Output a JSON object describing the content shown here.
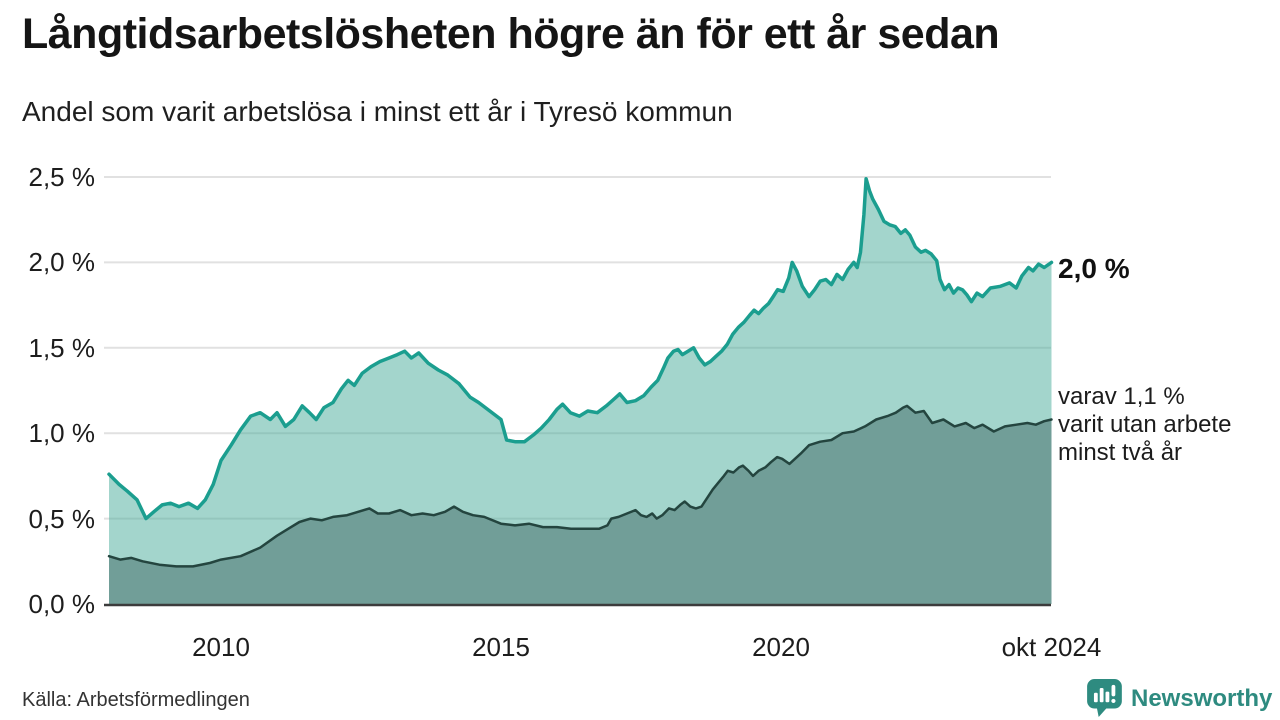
{
  "header": {
    "title": "Långtidsarbetslösheten högre än för ett år sedan",
    "subtitle": "Andel som varit arbetslösa i minst ett år i Tyresö kommun"
  },
  "footer": {
    "source": "Källa: Arbetsförmedlingen",
    "brand": "Newsworthy"
  },
  "colors": {
    "accent_teal": "#1b9e8f",
    "light_fill": "#47ab99",
    "dark_fill": "#719e98",
    "dark_line": "#24453f",
    "gridline": "#e1e1e1",
    "baseline": "#3c3c3c",
    "brand_teal": "#2e8b80",
    "text_dark": "#151515"
  },
  "chart_data": {
    "type": "area",
    "title": "Långtidsarbetslösheten högre än för ett år sedan",
    "subtitle": "Andel som varit arbetslösa i minst ett år i Tyresö kommun",
    "xlabel": "",
    "ylabel": "",
    "x_range": [
      2007.95,
      2024.83
    ],
    "ylim": [
      0,
      2.5
    ],
    "grid": "horizontal",
    "legend_position": "none",
    "y_ticks": [
      {
        "value": 2.5,
        "label": "2,5 %"
      },
      {
        "value": 2.0,
        "label": "2,0 %"
      },
      {
        "value": 1.5,
        "label": "1,5 %"
      },
      {
        "value": 1.0,
        "label": "1,0 %"
      },
      {
        "value": 0.5,
        "label": "0,5 %"
      },
      {
        "value": 0.0,
        "label": "0,0 %"
      }
    ],
    "x_ticks": [
      {
        "year": 2010,
        "label": "2010"
      },
      {
        "year": 2015,
        "label": "2015"
      },
      {
        "year": 2020,
        "label": "2020"
      },
      {
        "year": 2024.83,
        "label": "okt 2024"
      }
    ],
    "annotations": {
      "end_label": "2,0 %",
      "sub_label_lines": [
        "varav 1,1 %",
        "varit utan arbete",
        "minst två år"
      ]
    },
    "series": [
      {
        "id": "unemployed_min_one_year",
        "name": "Arbetslösa minst ett år",
        "line_color": "#1b9e8f",
        "line_width": 3.5,
        "fill_color": "#47ab99",
        "fill_opacity": 0.5,
        "end_value_label": "2,0 %",
        "points": [
          [
            2008.0,
            0.76
          ],
          [
            2008.18,
            0.7
          ],
          [
            2008.33,
            0.66
          ],
          [
            2008.5,
            0.61
          ],
          [
            2008.66,
            0.5
          ],
          [
            2008.8,
            0.54
          ],
          [
            2008.95,
            0.58
          ],
          [
            2009.1,
            0.59
          ],
          [
            2009.25,
            0.57
          ],
          [
            2009.42,
            0.59
          ],
          [
            2009.58,
            0.56
          ],
          [
            2009.72,
            0.61
          ],
          [
            2009.86,
            0.7
          ],
          [
            2010.0,
            0.84
          ],
          [
            2010.18,
            0.93
          ],
          [
            2010.35,
            1.02
          ],
          [
            2010.53,
            1.1
          ],
          [
            2010.7,
            1.12
          ],
          [
            2010.88,
            1.08
          ],
          [
            2011.0,
            1.12
          ],
          [
            2011.15,
            1.04
          ],
          [
            2011.3,
            1.08
          ],
          [
            2011.45,
            1.16
          ],
          [
            2011.58,
            1.12
          ],
          [
            2011.7,
            1.08
          ],
          [
            2011.84,
            1.15
          ],
          [
            2012.0,
            1.18
          ],
          [
            2012.15,
            1.26
          ],
          [
            2012.27,
            1.31
          ],
          [
            2012.38,
            1.28
          ],
          [
            2012.52,
            1.35
          ],
          [
            2012.68,
            1.39
          ],
          [
            2012.84,
            1.42
          ],
          [
            2013.0,
            1.44
          ],
          [
            2013.15,
            1.46
          ],
          [
            2013.28,
            1.48
          ],
          [
            2013.4,
            1.44
          ],
          [
            2013.53,
            1.47
          ],
          [
            2013.7,
            1.41
          ],
          [
            2013.88,
            1.37
          ],
          [
            2014.05,
            1.34
          ],
          [
            2014.25,
            1.29
          ],
          [
            2014.45,
            1.21
          ],
          [
            2014.6,
            1.18
          ],
          [
            2014.8,
            1.13
          ],
          [
            2015.0,
            1.08
          ],
          [
            2015.1,
            0.96
          ],
          [
            2015.25,
            0.95
          ],
          [
            2015.42,
            0.95
          ],
          [
            2015.58,
            0.99
          ],
          [
            2015.72,
            1.03
          ],
          [
            2015.86,
            1.08
          ],
          [
            2016.0,
            1.14
          ],
          [
            2016.1,
            1.17
          ],
          [
            2016.24,
            1.12
          ],
          [
            2016.4,
            1.1
          ],
          [
            2016.55,
            1.13
          ],
          [
            2016.72,
            1.12
          ],
          [
            2016.88,
            1.16
          ],
          [
            2017.02,
            1.2
          ],
          [
            2017.12,
            1.23
          ],
          [
            2017.25,
            1.18
          ],
          [
            2017.4,
            1.19
          ],
          [
            2017.55,
            1.22
          ],
          [
            2017.68,
            1.27
          ],
          [
            2017.8,
            1.31
          ],
          [
            2017.9,
            1.38
          ],
          [
            2017.98,
            1.44
          ],
          [
            2018.08,
            1.48
          ],
          [
            2018.16,
            1.49
          ],
          [
            2018.24,
            1.46
          ],
          [
            2018.34,
            1.48
          ],
          [
            2018.44,
            1.5
          ],
          [
            2018.54,
            1.44
          ],
          [
            2018.64,
            1.4
          ],
          [
            2018.74,
            1.42
          ],
          [
            2018.84,
            1.45
          ],
          [
            2018.94,
            1.48
          ],
          [
            2019.04,
            1.52
          ],
          [
            2019.14,
            1.58
          ],
          [
            2019.24,
            1.62
          ],
          [
            2019.34,
            1.65
          ],
          [
            2019.44,
            1.69
          ],
          [
            2019.52,
            1.72
          ],
          [
            2019.6,
            1.7
          ],
          [
            2019.68,
            1.73
          ],
          [
            2019.78,
            1.76
          ],
          [
            2019.86,
            1.8
          ],
          [
            2019.94,
            1.84
          ],
          [
            2020.04,
            1.83
          ],
          [
            2020.14,
            1.91
          ],
          [
            2020.2,
            2.0
          ],
          [
            2020.28,
            1.95
          ],
          [
            2020.38,
            1.86
          ],
          [
            2020.5,
            1.8
          ],
          [
            2020.6,
            1.84
          ],
          [
            2020.7,
            1.89
          ],
          [
            2020.8,
            1.9
          ],
          [
            2020.9,
            1.87
          ],
          [
            2021.0,
            1.93
          ],
          [
            2021.1,
            1.9
          ],
          [
            2021.2,
            1.96
          ],
          [
            2021.3,
            2.0
          ],
          [
            2021.36,
            1.97
          ],
          [
            2021.42,
            2.06
          ],
          [
            2021.48,
            2.28
          ],
          [
            2021.52,
            2.49
          ],
          [
            2021.58,
            2.42
          ],
          [
            2021.64,
            2.37
          ],
          [
            2021.74,
            2.31
          ],
          [
            2021.84,
            2.24
          ],
          [
            2021.94,
            2.22
          ],
          [
            2022.04,
            2.21
          ],
          [
            2022.14,
            2.17
          ],
          [
            2022.22,
            2.19
          ],
          [
            2022.3,
            2.16
          ],
          [
            2022.4,
            2.09
          ],
          [
            2022.5,
            2.06
          ],
          [
            2022.58,
            2.07
          ],
          [
            2022.68,
            2.05
          ],
          [
            2022.78,
            2.01
          ],
          [
            2022.84,
            1.9
          ],
          [
            2022.92,
            1.84
          ],
          [
            2023.0,
            1.87
          ],
          [
            2023.08,
            1.82
          ],
          [
            2023.16,
            1.85
          ],
          [
            2023.24,
            1.84
          ],
          [
            2023.32,
            1.81
          ],
          [
            2023.4,
            1.77
          ],
          [
            2023.5,
            1.82
          ],
          [
            2023.6,
            1.8
          ],
          [
            2023.74,
            1.85
          ],
          [
            2023.92,
            1.86
          ],
          [
            2024.08,
            1.88
          ],
          [
            2024.2,
            1.85
          ],
          [
            2024.3,
            1.92
          ],
          [
            2024.42,
            1.97
          ],
          [
            2024.5,
            1.95
          ],
          [
            2024.6,
            1.99
          ],
          [
            2024.7,
            1.97
          ],
          [
            2024.83,
            2.0
          ]
        ]
      },
      {
        "id": "unemployed_min_two_years",
        "name": "Varav utan arbete minst två år",
        "line_color": "#24453f",
        "line_width": 2.5,
        "fill_color": "#719e98",
        "fill_opacity": 1,
        "end_value_label": "varav 1,1 %",
        "points": [
          [
            2008.0,
            0.28
          ],
          [
            2008.2,
            0.26
          ],
          [
            2008.4,
            0.27
          ],
          [
            2008.6,
            0.25
          ],
          [
            2008.9,
            0.23
          ],
          [
            2009.2,
            0.22
          ],
          [
            2009.5,
            0.22
          ],
          [
            2009.8,
            0.24
          ],
          [
            2010.0,
            0.26
          ],
          [
            2010.35,
            0.28
          ],
          [
            2010.7,
            0.33
          ],
          [
            2011.0,
            0.4
          ],
          [
            2011.2,
            0.44
          ],
          [
            2011.4,
            0.48
          ],
          [
            2011.6,
            0.5
          ],
          [
            2011.8,
            0.49
          ],
          [
            2012.0,
            0.51
          ],
          [
            2012.25,
            0.52
          ],
          [
            2012.45,
            0.54
          ],
          [
            2012.65,
            0.56
          ],
          [
            2012.8,
            0.53
          ],
          [
            2013.0,
            0.53
          ],
          [
            2013.2,
            0.55
          ],
          [
            2013.4,
            0.52
          ],
          [
            2013.6,
            0.53
          ],
          [
            2013.8,
            0.52
          ],
          [
            2014.0,
            0.54
          ],
          [
            2014.16,
            0.57
          ],
          [
            2014.32,
            0.54
          ],
          [
            2014.5,
            0.52
          ],
          [
            2014.7,
            0.51
          ],
          [
            2015.0,
            0.47
          ],
          [
            2015.25,
            0.46
          ],
          [
            2015.5,
            0.47
          ],
          [
            2015.75,
            0.45
          ],
          [
            2016.0,
            0.45
          ],
          [
            2016.25,
            0.44
          ],
          [
            2016.5,
            0.44
          ],
          [
            2016.75,
            0.44
          ],
          [
            2016.9,
            0.46
          ],
          [
            2016.97,
            0.5
          ],
          [
            2017.1,
            0.51
          ],
          [
            2017.25,
            0.53
          ],
          [
            2017.4,
            0.55
          ],
          [
            2017.5,
            0.52
          ],
          [
            2017.6,
            0.51
          ],
          [
            2017.7,
            0.53
          ],
          [
            2017.78,
            0.5
          ],
          [
            2017.88,
            0.52
          ],
          [
            2018.0,
            0.56
          ],
          [
            2018.1,
            0.55
          ],
          [
            2018.2,
            0.58
          ],
          [
            2018.28,
            0.6
          ],
          [
            2018.38,
            0.57
          ],
          [
            2018.48,
            0.56
          ],
          [
            2018.58,
            0.57
          ],
          [
            2018.68,
            0.62
          ],
          [
            2018.78,
            0.67
          ],
          [
            2018.88,
            0.71
          ],
          [
            2018.98,
            0.75
          ],
          [
            2019.05,
            0.78
          ],
          [
            2019.15,
            0.77
          ],
          [
            2019.25,
            0.8
          ],
          [
            2019.32,
            0.81
          ],
          [
            2019.42,
            0.78
          ],
          [
            2019.5,
            0.75
          ],
          [
            2019.6,
            0.78
          ],
          [
            2019.72,
            0.8
          ],
          [
            2019.82,
            0.83
          ],
          [
            2019.93,
            0.86
          ],
          [
            2020.02,
            0.85
          ],
          [
            2020.15,
            0.82
          ],
          [
            2020.35,
            0.88
          ],
          [
            2020.5,
            0.93
          ],
          [
            2020.7,
            0.95
          ],
          [
            2020.9,
            0.96
          ],
          [
            2021.1,
            1.0
          ],
          [
            2021.3,
            1.01
          ],
          [
            2021.5,
            1.04
          ],
          [
            2021.7,
            1.08
          ],
          [
            2021.9,
            1.1
          ],
          [
            2022.05,
            1.12
          ],
          [
            2022.18,
            1.15
          ],
          [
            2022.25,
            1.16
          ],
          [
            2022.4,
            1.12
          ],
          [
            2022.55,
            1.13
          ],
          [
            2022.7,
            1.06
          ],
          [
            2022.9,
            1.08
          ],
          [
            2023.1,
            1.04
          ],
          [
            2023.3,
            1.06
          ],
          [
            2023.45,
            1.03
          ],
          [
            2023.6,
            1.05
          ],
          [
            2023.8,
            1.01
          ],
          [
            2024.0,
            1.04
          ],
          [
            2024.2,
            1.05
          ],
          [
            2024.4,
            1.06
          ],
          [
            2024.55,
            1.05
          ],
          [
            2024.7,
            1.07
          ],
          [
            2024.83,
            1.08
          ]
        ]
      }
    ]
  }
}
